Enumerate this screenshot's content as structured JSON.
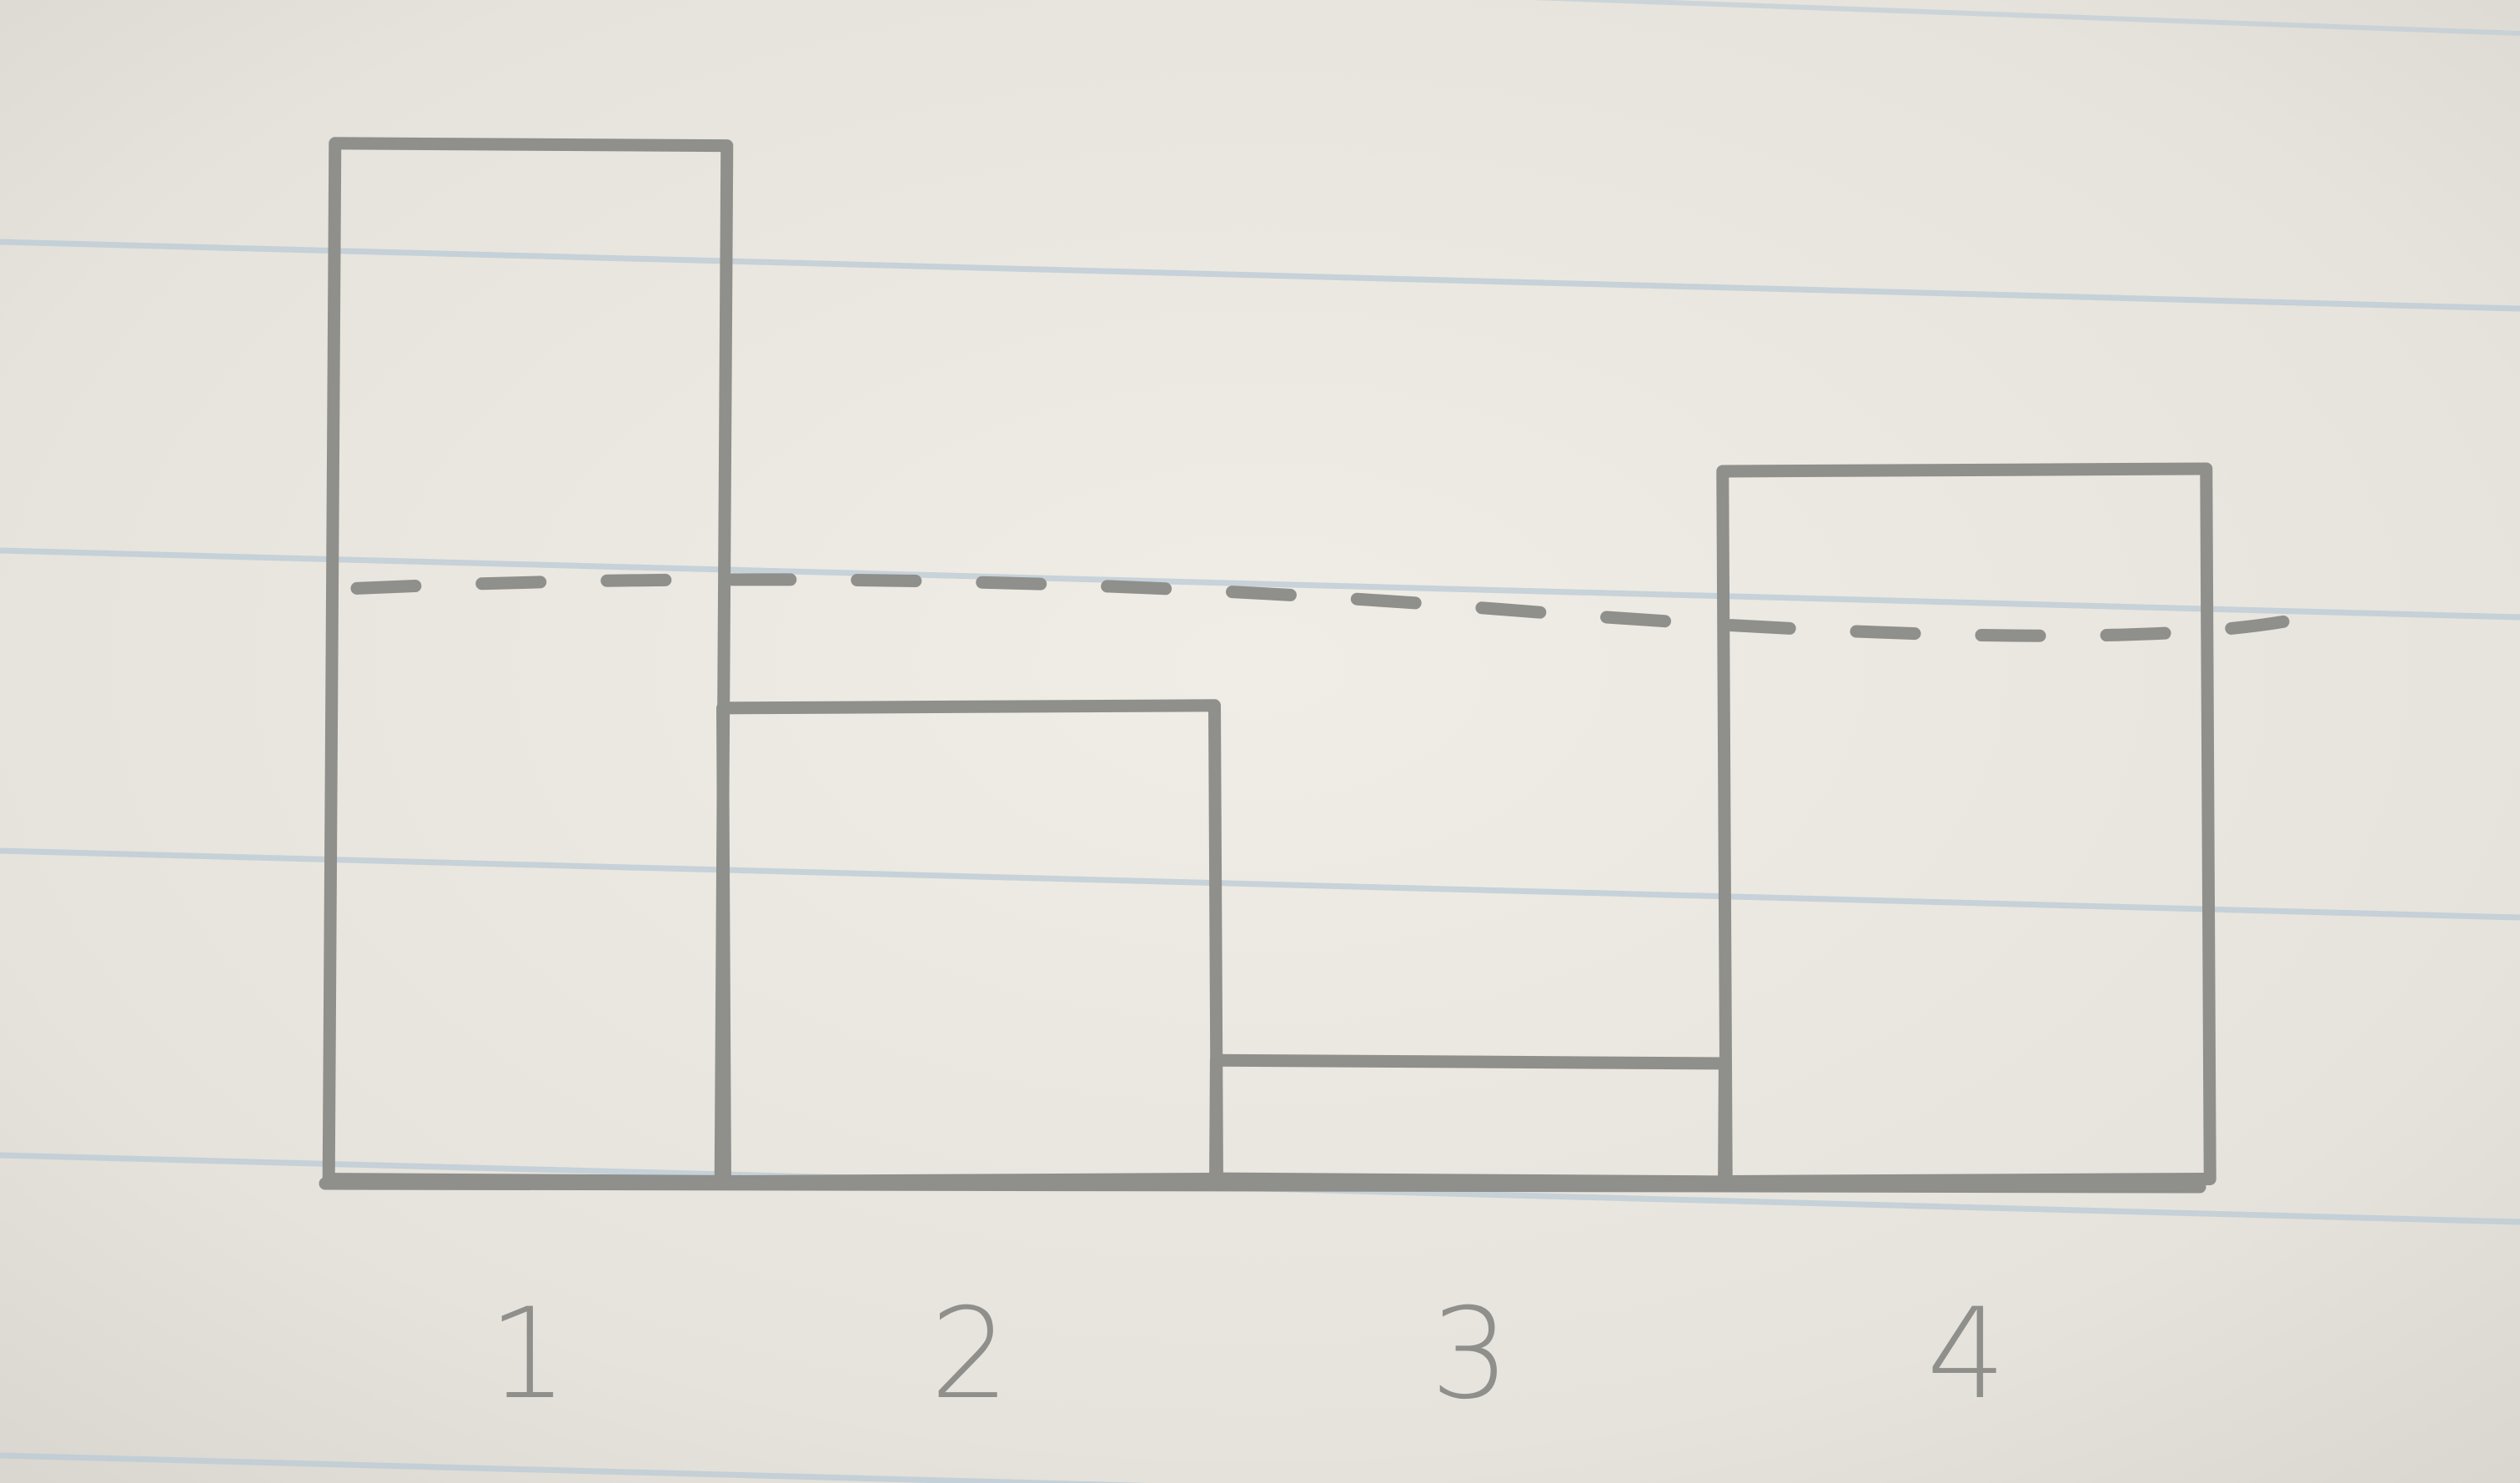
{
  "chart_data": {
    "type": "bar",
    "categories": [
      "1",
      "2",
      "3",
      "4"
    ],
    "values": [
      7.0,
      3.2,
      0.8,
      4.8
    ],
    "average_line": 4.0,
    "title": "",
    "xlabel": "",
    "ylabel": "",
    "ylim": [
      0,
      7.3
    ],
    "grid": false,
    "style": "hand-drawn pencil sketch on lined notebook paper"
  },
  "colors": {
    "paper": "#e6e3dc",
    "ruled_line": "#b9cad6",
    "pencil": "#8f8f8c"
  }
}
